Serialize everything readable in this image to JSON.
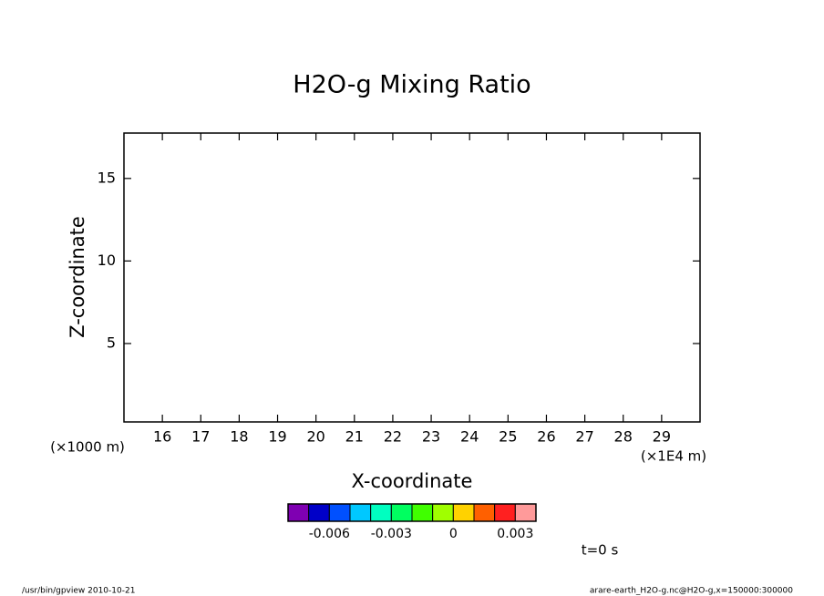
{
  "chart_data": {
    "type": "contour",
    "title": "H2O-g Mixing Ratio",
    "x_label": "X-coordinate",
    "y_label": "Z-coordinate",
    "x_unit": "(×1E4 m)",
    "y_unit": "(×1000 m)",
    "xlim": [
      15,
      30
    ],
    "xticks": [
      16,
      17,
      18,
      19,
      20,
      21,
      22,
      23,
      24,
      25,
      26,
      27,
      28,
      29
    ],
    "ylim": [
      0.25,
      17.75
    ],
    "yticks": [
      5,
      10,
      15
    ],
    "colorbar": {
      "colors": [
        "#7f00b2",
        "#0000c8",
        "#0050ff",
        "#00c8ff",
        "#00ffc0",
        "#00ff60",
        "#40ff00",
        "#a0ff00",
        "#ffd200",
        "#ff6000",
        "#ff2020",
        "#ff9a9a"
      ],
      "lim": [
        -0.008,
        0.004
      ],
      "ticks": [
        -0.006,
        -0.003,
        0,
        0.003
      ]
    },
    "time_label": "t=0 s",
    "footer_left": "/usr/bin/gpview   2010-10-21",
    "footer_right": "arare-earth_H2O-g.nc@H2O-g,x=150000:300000"
  }
}
